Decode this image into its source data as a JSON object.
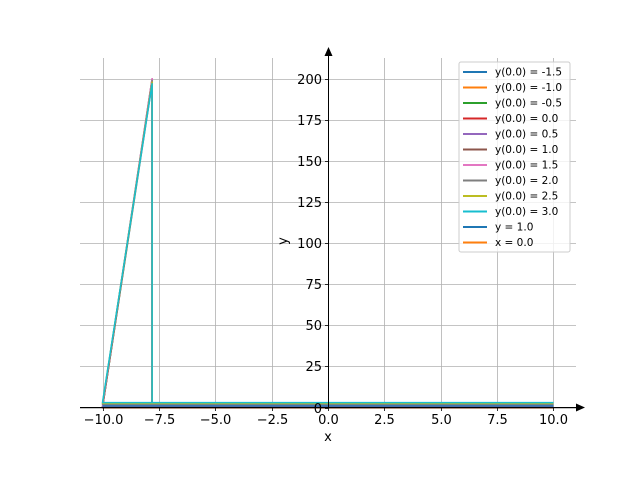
{
  "chart_data": {
    "type": "line",
    "title": "",
    "xlabel": "x",
    "ylabel": "y",
    "xlim": [
      -11.0,
      11.0
    ],
    "ylim": [
      -2,
      210
    ],
    "grid": true,
    "legend_position": "top-right",
    "x_ticks": [
      -10.0,
      -7.5,
      -5.0,
      -2.5,
      0.0,
      2.5,
      5.0,
      7.5,
      10.0
    ],
    "x_tick_labels": [
      "−10.0",
      "−7.5",
      "−5.0",
      "−2.5",
      "0.0",
      "2.5",
      "5.0",
      "7.5",
      "10.0"
    ],
    "y_ticks": [
      0,
      25,
      50,
      75,
      100,
      125,
      150,
      175,
      200
    ],
    "y_tick_labels": [
      "0",
      "25",
      "50",
      "75",
      "100",
      "125",
      "150",
      "175",
      "200"
    ],
    "series": [
      {
        "name": "y(0.0) = -1.5",
        "color": "#1f77b4",
        "x": [
          -10.0,
          -7.8,
          -7.8,
          -10.0,
          -10.0,
          10.0
        ],
        "y": [
          0,
          197,
          0,
          0,
          0,
          0
        ]
      },
      {
        "name": "y(0.0) = -1.0",
        "color": "#ff7f0e",
        "x": [
          -10.0,
          -7.8,
          -7.8,
          -10.0,
          -10.0,
          10.0
        ],
        "y": [
          0,
          198,
          0,
          0,
          0,
          0
        ]
      },
      {
        "name": "y(0.0) = -0.5",
        "color": "#2ca02c",
        "x": [
          -10.0,
          -7.8,
          -7.8,
          -10.0,
          -10.0,
          10.0
        ],
        "y": [
          0,
          199,
          0,
          0,
          0,
          0
        ]
      },
      {
        "name": "y(0.0) = 0.0",
        "color": "#d62728",
        "x": [
          -10.0,
          -7.8,
          -7.8,
          -10.0,
          -10.0,
          10.0
        ],
        "y": [
          0,
          200,
          0,
          0,
          0,
          0
        ]
      },
      {
        "name": "y(0.0) = 0.5",
        "color": "#9467bd",
        "x": [
          -10.0,
          -7.8,
          -7.8,
          -10.0,
          -10.0,
          10.0
        ],
        "y": [
          0.5,
          200,
          0.5,
          0.5,
          0.5,
          0.5
        ]
      },
      {
        "name": "y(0.0) = 1.0",
        "color": "#8c564b",
        "x": [
          -10.0,
          10.0
        ],
        "y": [
          1,
          1
        ]
      },
      {
        "name": "y(0.0) = 1.5",
        "color": "#e377c2",
        "x": [
          -10.0,
          -7.8,
          -7.8,
          -10.0,
          -10.0,
          10.0
        ],
        "y": [
          1.5,
          200,
          1.5,
          1.5,
          1.5,
          1.5
        ]
      },
      {
        "name": "y(0.0) = 2.0",
        "color": "#7f7f7f",
        "x": [
          -10.0,
          -7.8,
          -7.8,
          -10.0,
          -10.0,
          10.0
        ],
        "y": [
          2,
          199,
          2,
          2,
          2,
          2
        ]
      },
      {
        "name": "y(0.0) = 2.5",
        "color": "#bcbd22",
        "x": [
          -10.0,
          -7.8,
          -7.8,
          -10.0,
          -10.0,
          10.0
        ],
        "y": [
          2.5,
          198,
          2.5,
          2.5,
          2.5,
          2.5
        ]
      },
      {
        "name": "y(0.0) = 3.0",
        "color": "#17becf",
        "x": [
          -10.0,
          -7.8,
          -7.8,
          -10.0,
          -10.0,
          10.0
        ],
        "y": [
          3,
          197,
          3,
          3,
          3,
          3
        ]
      },
      {
        "name": "y = 1.0",
        "color": "#1f77b4",
        "x": [
          -10.0,
          10.0
        ],
        "y": [
          1,
          1
        ]
      },
      {
        "name": "x = 0.0",
        "color": "#ff7f0e",
        "x": [
          0.0,
          0.0
        ],
        "y": [
          0,
          0
        ]
      }
    ]
  }
}
